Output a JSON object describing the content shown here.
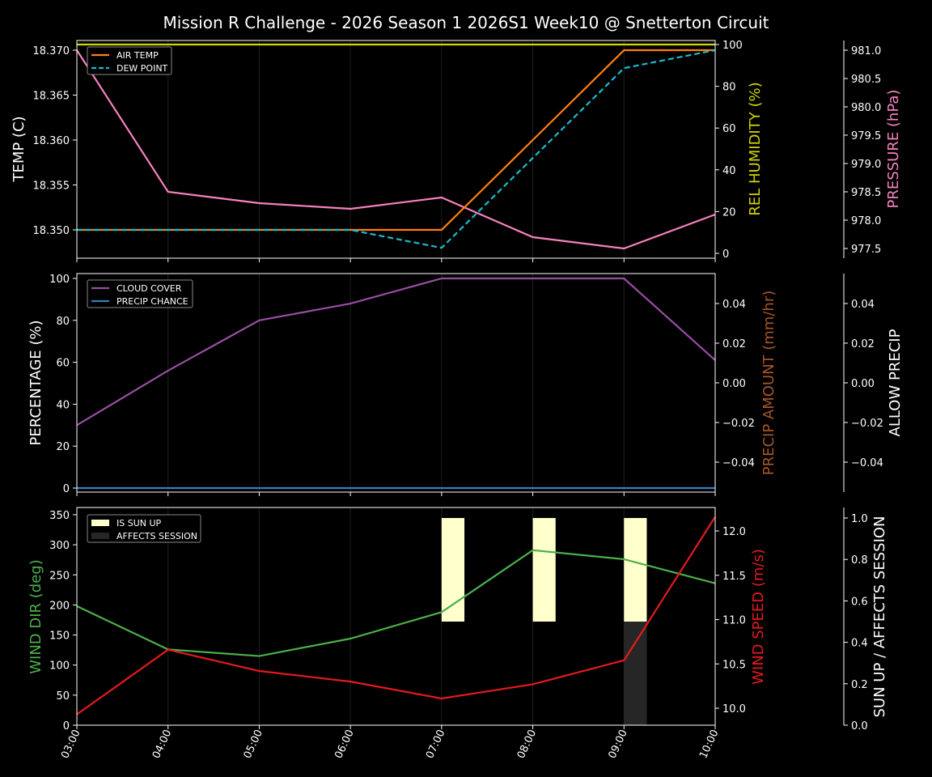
{
  "title": "Mission R Challenge - 2026 Season 1 2026S1 Week10 @ Snetterton Circuit",
  "colors": {
    "background": "#000000",
    "air_temp": "#ff7f0e",
    "dew_point": "#17becf",
    "humidity": "#d4d400",
    "pressure": "#f781bf",
    "cloud_cover": "#984ea3",
    "precip_chance": "#377eb8",
    "precip_amount_label": "#a65628",
    "wind_dir": "#4daf4a",
    "wind_speed": "#e41a1c",
    "sun_up": "#ffffcc",
    "affects_session": "#262626"
  },
  "chart_data": [
    {
      "type": "line",
      "panel": "top",
      "x": [
        "03:00",
        "04:00",
        "05:00",
        "06:00",
        "07:00",
        "08:00",
        "09:00",
        "10:00"
      ],
      "series": [
        {
          "name": "AIR TEMP",
          "axis": "left",
          "values": [
            18.35,
            18.35,
            18.35,
            18.35,
            18.35,
            18.36,
            18.37,
            18.37
          ]
        },
        {
          "name": "DEW POINT",
          "axis": "left",
          "style": "dashed",
          "values": [
            18.35,
            18.35,
            18.35,
            18.35,
            18.348,
            18.358,
            18.368,
            18.37
          ]
        },
        {
          "name": "REL HUMIDITY",
          "axis": "right1",
          "values": [
            100,
            100,
            100,
            100,
            100,
            100,
            100,
            100
          ]
        },
        {
          "name": "PRESSURE",
          "axis": "right2",
          "values": [
            981.0,
            978.5,
            978.3,
            978.2,
            978.4,
            977.7,
            977.5,
            978.1
          ]
        }
      ],
      "ylabel": "TEMP (C)",
      "ylabel_right1": "REL HUMIDITY (%)",
      "ylabel_right2": "PRESSURE (hPa)",
      "yticks": [
        "18.350",
        "18.355",
        "18.360",
        "18.365",
        "18.370"
      ],
      "yticks_right1": [
        "0",
        "20",
        "40",
        "60",
        "80",
        "100"
      ],
      "yticks_right2": [
        "977.5",
        "978.0",
        "978.5",
        "979.0",
        "979.5",
        "980.0",
        "980.5",
        "981.0"
      ],
      "legend": [
        "AIR TEMP",
        "DEW POINT"
      ],
      "legend_position": "upper left"
    },
    {
      "type": "line",
      "panel": "middle",
      "x": [
        "03:00",
        "04:00",
        "05:00",
        "06:00",
        "07:00",
        "08:00",
        "09:00",
        "10:00"
      ],
      "series": [
        {
          "name": "CLOUD COVER",
          "axis": "left",
          "values": [
            30,
            56,
            80,
            88,
            100,
            100,
            100,
            61
          ]
        },
        {
          "name": "PRECIP CHANCE",
          "axis": "left",
          "values": [
            0,
            0,
            0,
            0,
            0,
            0,
            0,
            0
          ]
        }
      ],
      "ylabel": "PERCENTAGE (%)",
      "ylabel_right1": "PRECIP AMOUNT (mm/hr)",
      "ylabel_right2": "ALLOW PRECIP",
      "yticks": [
        "0",
        "20",
        "40",
        "60",
        "80",
        "100"
      ],
      "yticks_right1": [
        "−0.04",
        "−0.02",
        "0.00",
        "0.02",
        "0.04"
      ],
      "yticks_right2": [
        "−0.04",
        "−0.02",
        "0.00",
        "0.02",
        "0.04"
      ],
      "legend": [
        "CLOUD COVER",
        "PRECIP CHANCE"
      ],
      "legend_position": "upper left"
    },
    {
      "type": "line",
      "panel": "bottom",
      "x": [
        "03:00",
        "04:00",
        "05:00",
        "06:00",
        "07:00",
        "08:00",
        "09:00",
        "10:00"
      ],
      "series": [
        {
          "name": "WIND DIR",
          "axis": "left",
          "values": [
            198,
            126,
            115,
            144,
            188,
            291,
            276,
            236
          ]
        },
        {
          "name": "WIND SPEED",
          "axis": "right1",
          "values": [
            9.93,
            10.66,
            10.42,
            10.3,
            10.11,
            10.27,
            10.54,
            12.16
          ]
        },
        {
          "name": "IS SUN UP",
          "axis": "right2",
          "type": "bar",
          "bars": [
            {
              "x": "07:00",
              "bottom": 0.5,
              "top": 1.0
            },
            {
              "x": "08:00",
              "bottom": 0.5,
              "top": 1.0
            },
            {
              "x": "09:00",
              "bottom": 0.5,
              "top": 1.0
            }
          ]
        },
        {
          "name": "AFFECTS SESSION",
          "axis": "right2",
          "type": "bar",
          "bars": [
            {
              "x": "09:00",
              "bottom": 0.0,
              "top": 0.5
            }
          ]
        }
      ],
      "ylabel": "WIND DIR (deg)",
      "ylabel_right1": "WIND SPEED (m/s)",
      "ylabel_right2": "SUN UP / AFFECTS SESSION",
      "yticks": [
        "0",
        "50",
        "100",
        "150",
        "200",
        "250",
        "300",
        "350"
      ],
      "yticks_right1": [
        "10.0",
        "10.5",
        "11.0",
        "11.5",
        "12.0"
      ],
      "yticks_right2": [
        "0.0",
        "0.2",
        "0.4",
        "0.6",
        "0.8",
        "1.0"
      ],
      "xticks": [
        "03:00",
        "04:00",
        "05:00",
        "06:00",
        "07:00",
        "08:00",
        "09:00",
        "10:00"
      ],
      "legend": [
        "IS SUN UP",
        "AFFECTS SESSION"
      ],
      "legend_position": "upper left"
    }
  ]
}
